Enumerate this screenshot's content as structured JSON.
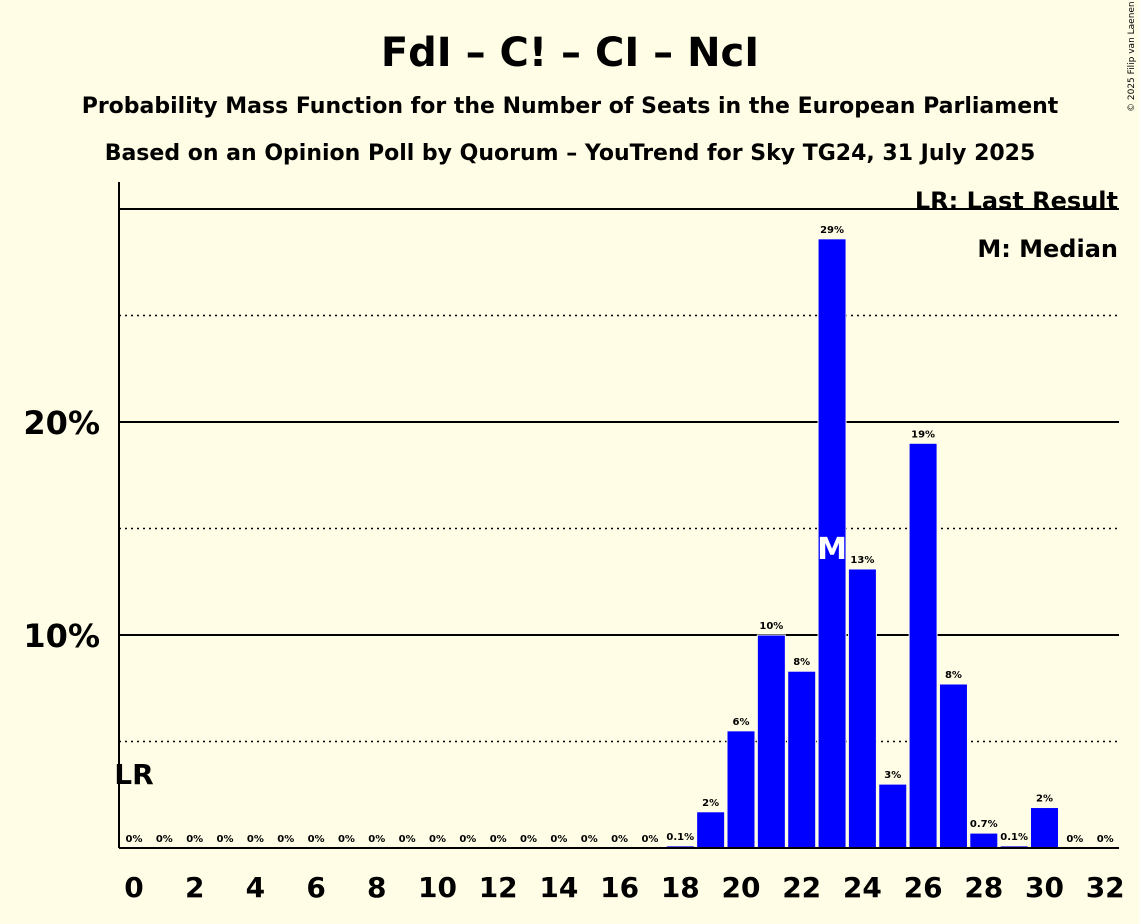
{
  "chart_data": {
    "type": "bar",
    "title": "FdI – C! – CI – NcI",
    "subtitle_1": "Probability Mass Function for the Number of Seats in the European Parliament",
    "subtitle_2": "Based on an Opinion Poll by Quorum – YouTrend for Sky TG24, 31 July 2025",
    "copyright": "© 2025 Filip van Laenen",
    "categories": [
      0,
      1,
      2,
      3,
      4,
      5,
      6,
      7,
      8,
      9,
      10,
      11,
      12,
      13,
      14,
      15,
      16,
      17,
      18,
      19,
      20,
      21,
      22,
      23,
      24,
      25,
      26,
      27,
      28,
      29,
      30,
      31,
      32
    ],
    "values": [
      0,
      0,
      0,
      0,
      0,
      0,
      0,
      0,
      0,
      0,
      0,
      0,
      0,
      0,
      0,
      0,
      0,
      0,
      0.1,
      1.7,
      5.5,
      10.0,
      8.3,
      28.6,
      13.1,
      3.0,
      19.0,
      7.7,
      0.7,
      0.1,
      1.9,
      0,
      0
    ],
    "data_labels": [
      "0%",
      "0%",
      "0%",
      "0%",
      "0%",
      "0%",
      "0%",
      "0%",
      "0%",
      "0%",
      "0%",
      "0%",
      "0%",
      "0%",
      "0%",
      "0%",
      "0%",
      "0%",
      "0.1%",
      "2%",
      "6%",
      "10%",
      "8%",
      "29%",
      "13%",
      "3%",
      "19%",
      "8%",
      "0.7%",
      "0.1%",
      "2%",
      "0%",
      "0%"
    ],
    "x_tick_labels": [
      "0",
      "2",
      "4",
      "6",
      "8",
      "10",
      "12",
      "14",
      "16",
      "18",
      "20",
      "22",
      "24",
      "26",
      "28",
      "30",
      "32"
    ],
    "x_tick_values": [
      0,
      2,
      4,
      6,
      8,
      10,
      12,
      14,
      16,
      18,
      20,
      22,
      24,
      26,
      28,
      30,
      32
    ],
    "y_tick_labels": [
      "10%",
      "20%"
    ],
    "y_tick_values": [
      10,
      20
    ],
    "ylim": [
      0,
      31
    ],
    "grid": "solid at 10% steps, dotted at 5% steps",
    "median_seat": 23,
    "median_marker": "M",
    "last_result_seat": 0,
    "last_result_marker": "LR",
    "legend": {
      "placement": "top-right",
      "items": [
        "LR: Last Result",
        "M: Median"
      ]
    },
    "colors": {
      "background": "#FFFDE6",
      "bar": "#0000FF",
      "text": "#000000",
      "median_marker": "#FFFFFF"
    }
  }
}
